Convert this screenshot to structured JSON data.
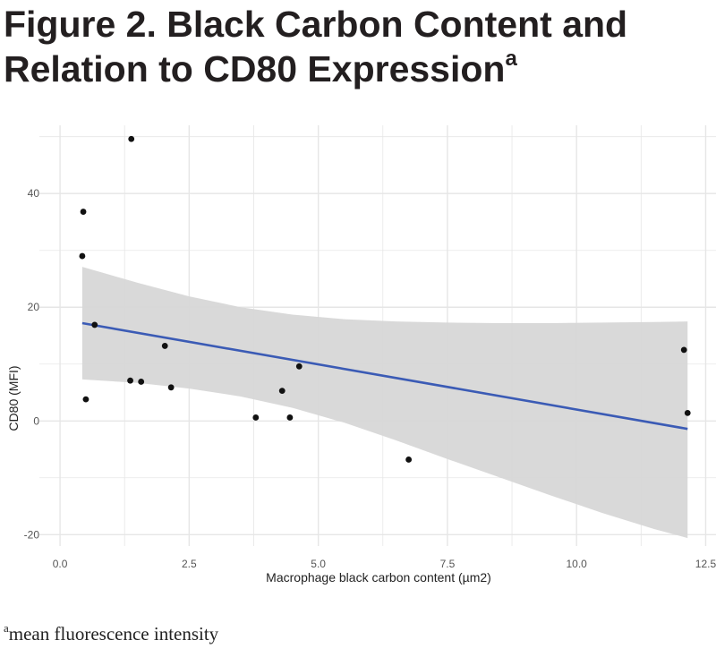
{
  "title": {
    "text": "Figure 2. Black Carbon Content and Relation to CD80 Expression",
    "superscript": "a"
  },
  "footnote": {
    "marker": "a",
    "text": "mean fluorescence intensity"
  },
  "chart_data": {
    "type": "scatter",
    "xlabel": "Macrophage black carbon content (µm2)",
    "ylabel": "CD80 (MFI)",
    "xlim": [
      -0.4,
      12.7
    ],
    "ylim": [
      -22,
      52
    ],
    "xticks": [
      0.0,
      2.5,
      5.0,
      7.5,
      10.0,
      12.5
    ],
    "xtick_labels": [
      "0.0",
      "2.5",
      "5.0",
      "7.5",
      "10.0",
      "12.5"
    ],
    "yticks": [
      -20,
      0,
      20,
      40
    ],
    "ytick_labels": [
      "-20",
      "0",
      "20",
      "40"
    ],
    "grid": true,
    "points": [
      {
        "x": 0.43,
        "y": 29.0
      },
      {
        "x": 0.45,
        "y": 36.8
      },
      {
        "x": 0.5,
        "y": 3.8
      },
      {
        "x": 0.67,
        "y": 16.9
      },
      {
        "x": 1.36,
        "y": 7.1
      },
      {
        "x": 1.38,
        "y": 49.6
      },
      {
        "x": 1.57,
        "y": 6.9
      },
      {
        "x": 2.03,
        "y": 13.2
      },
      {
        "x": 2.15,
        "y": 5.9
      },
      {
        "x": 3.79,
        "y": 0.6
      },
      {
        "x": 4.3,
        "y": 5.3
      },
      {
        "x": 4.45,
        "y": 0.6
      },
      {
        "x": 4.63,
        "y": 9.6
      },
      {
        "x": 6.75,
        "y": -6.8
      },
      {
        "x": 12.08,
        "y": 12.5
      },
      {
        "x": 12.15,
        "y": 1.4
      }
    ],
    "fit": {
      "method": "linear",
      "x_range": [
        0.43,
        12.15
      ],
      "line": [
        {
          "x": 0.43,
          "y": 17.2
        },
        {
          "x": 12.15,
          "y": -1.4
        }
      ],
      "ci_upper": [
        {
          "x": 0.43,
          "y": 27.1
        },
        {
          "x": 1.5,
          "y": 24.3
        },
        {
          "x": 2.5,
          "y": 21.9
        },
        {
          "x": 3.5,
          "y": 20.0
        },
        {
          "x": 4.5,
          "y": 18.7
        },
        {
          "x": 5.5,
          "y": 17.9
        },
        {
          "x": 6.5,
          "y": 17.5
        },
        {
          "x": 7.5,
          "y": 17.3
        },
        {
          "x": 8.5,
          "y": 17.2
        },
        {
          "x": 9.5,
          "y": 17.2
        },
        {
          "x": 10.5,
          "y": 17.3
        },
        {
          "x": 11.5,
          "y": 17.4
        },
        {
          "x": 12.15,
          "y": 17.5
        }
      ],
      "ci_lower": [
        {
          "x": 0.43,
          "y": 7.3
        },
        {
          "x": 1.5,
          "y": 6.7
        },
        {
          "x": 2.5,
          "y": 5.7
        },
        {
          "x": 3.5,
          "y": 4.3
        },
        {
          "x": 4.5,
          "y": 2.3
        },
        {
          "x": 5.5,
          "y": -0.3
        },
        {
          "x": 6.5,
          "y": -3.4
        },
        {
          "x": 7.5,
          "y": -6.7
        },
        {
          "x": 8.5,
          "y": -9.9
        },
        {
          "x": 9.5,
          "y": -13.1
        },
        {
          "x": 10.5,
          "y": -16.2
        },
        {
          "x": 11.5,
          "y": -19.0
        },
        {
          "x": 12.15,
          "y": -20.6
        }
      ]
    },
    "colors": {
      "points": "#111111",
      "fit_line": "#3b5bb5",
      "ci_band": "#d7d7d7",
      "grid": "#e6e6e6"
    }
  }
}
